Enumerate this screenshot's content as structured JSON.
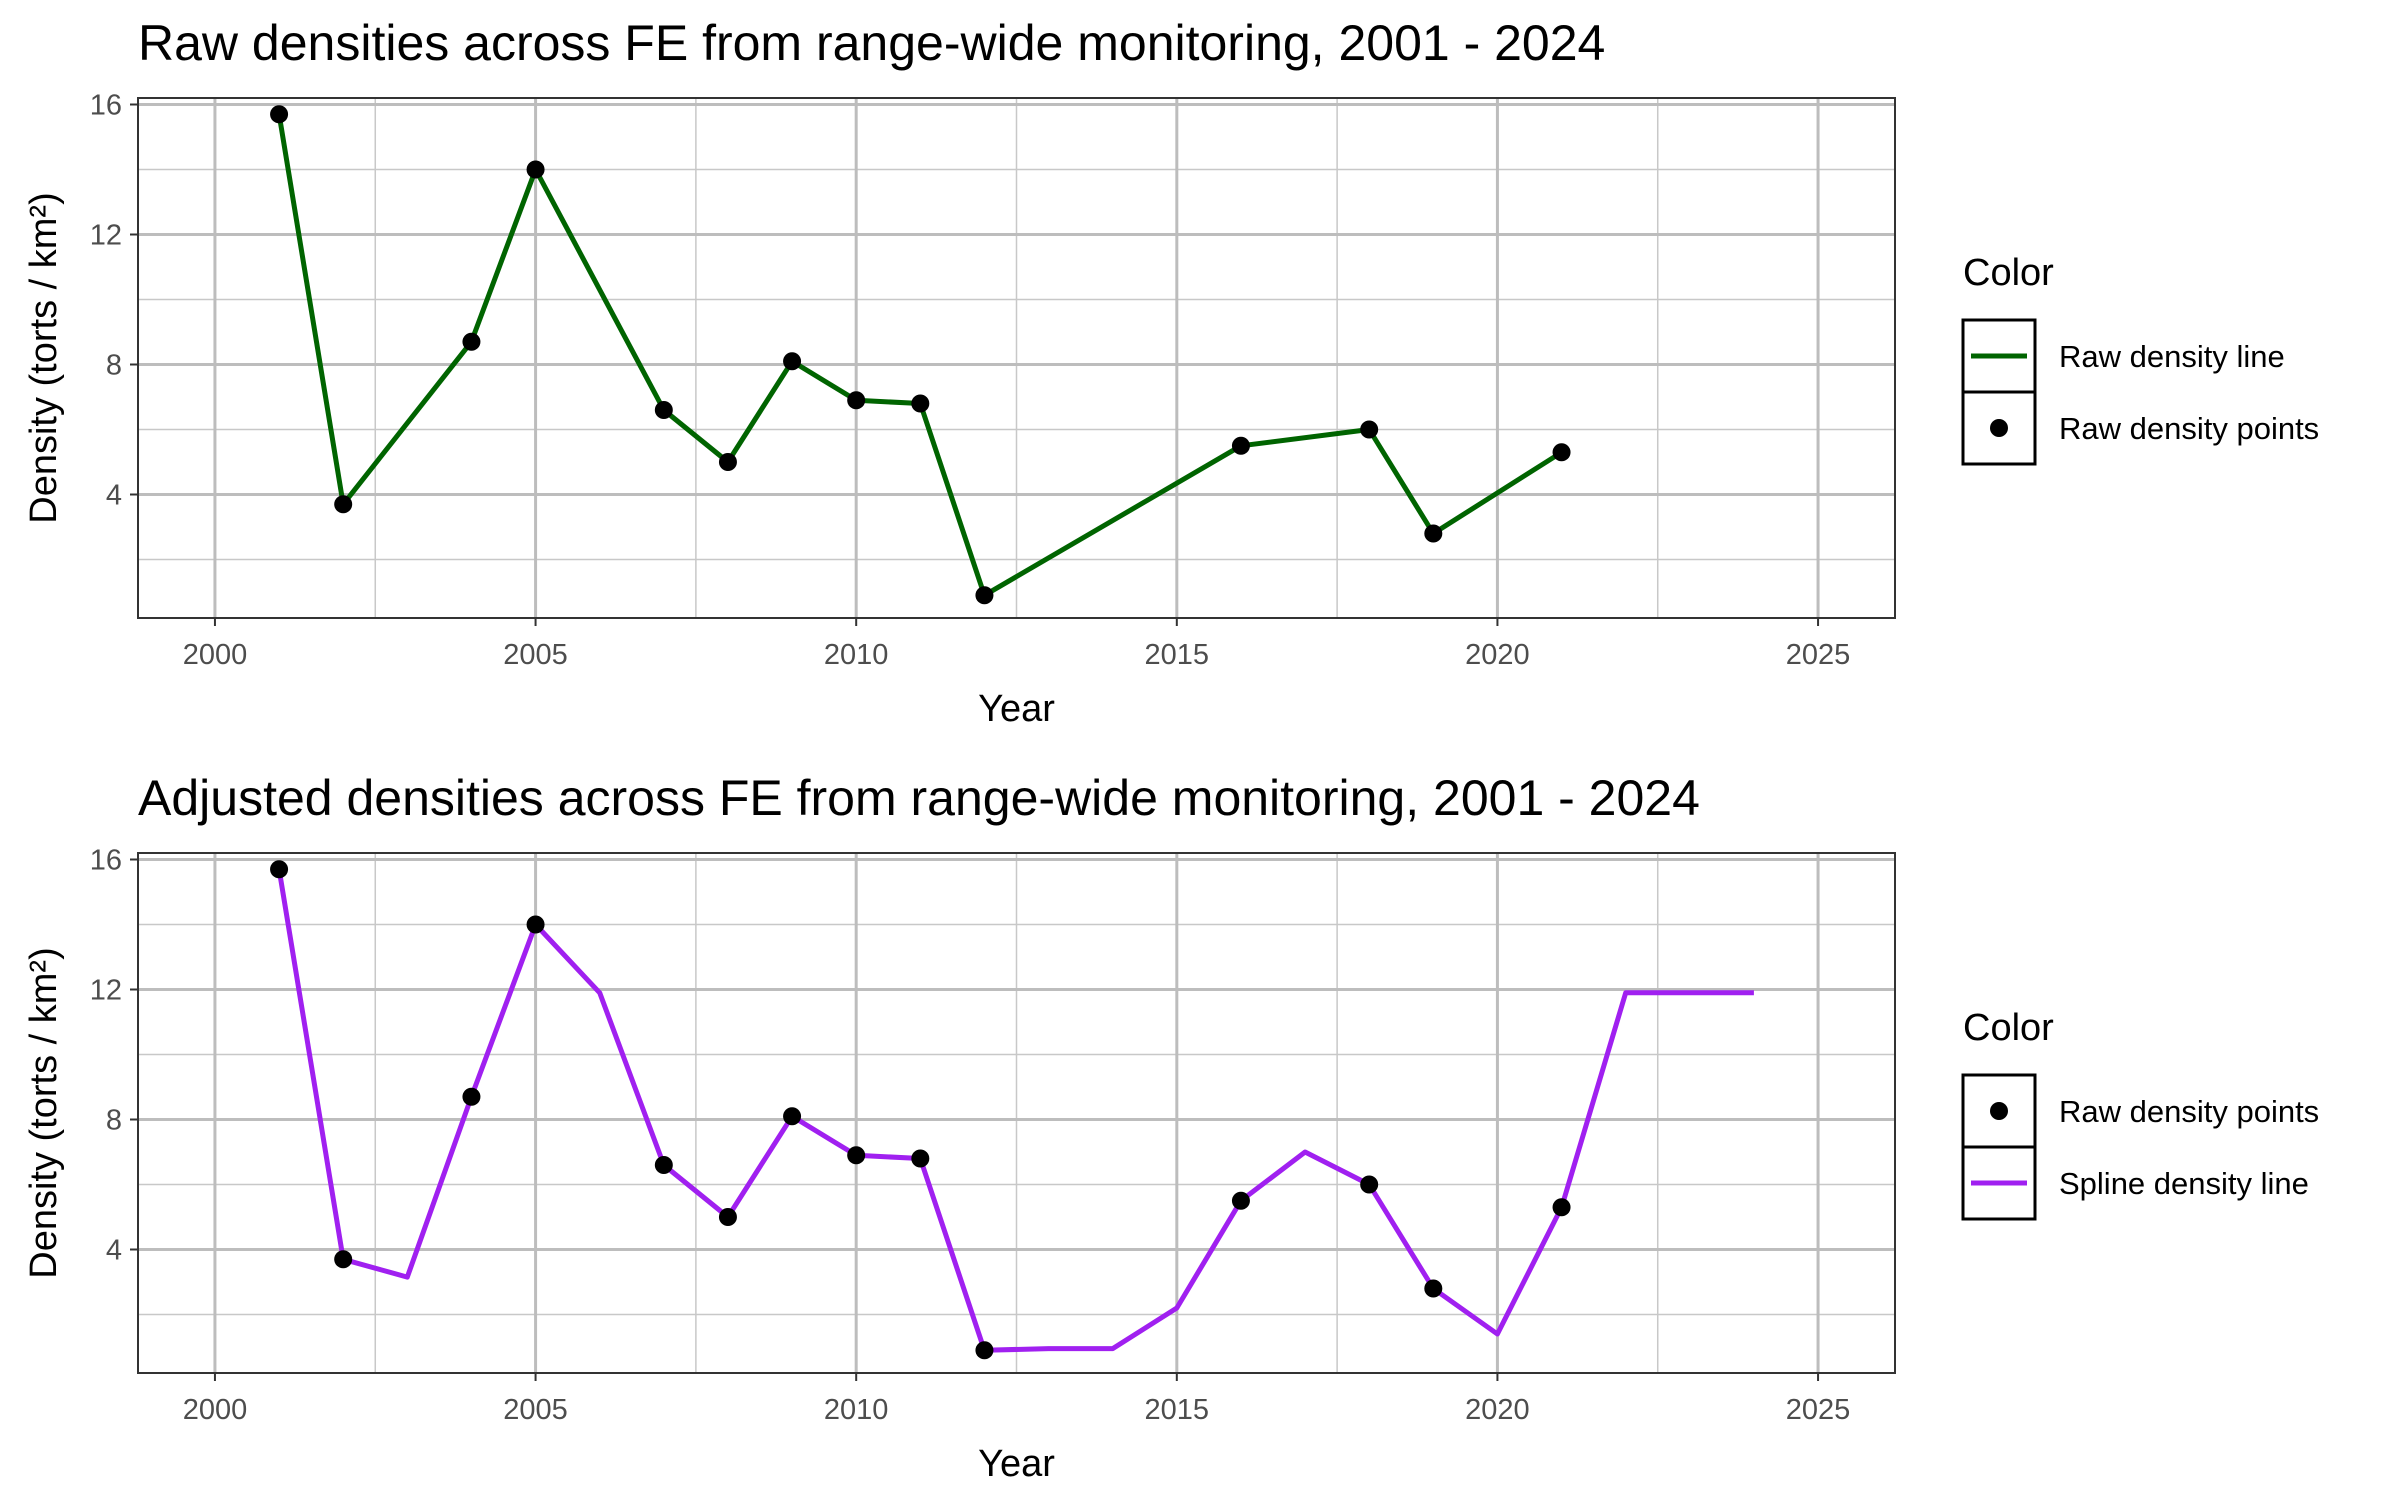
{
  "chart_data": [
    {
      "type": "line",
      "title": "Raw densities across FE from range-wide monitoring, 2001 - 2024",
      "xlabel": "Year",
      "ylabel": "Density (torts / km²)",
      "xlim": [
        1998.8,
        2026.2
      ],
      "ylim": [
        0.2,
        16.2
      ],
      "x_ticks": [
        2000,
        2005,
        2010,
        2015,
        2020,
        2025
      ],
      "y_ticks": [
        4,
        8,
        12,
        16
      ],
      "grid": true,
      "legend": {
        "title": "Color",
        "placement": "right",
        "entries": [
          {
            "label": "Raw density line",
            "kind": "line",
            "color": "#006400"
          },
          {
            "label": "Raw density points",
            "kind": "point",
            "color": "#000000"
          }
        ]
      },
      "series": [
        {
          "name": "Raw density line",
          "kind": "line",
          "color": "#006400",
          "x": [
            2001,
            2002,
            2004,
            2005,
            2007,
            2008,
            2009,
            2010,
            2011,
            2012,
            2016,
            2018,
            2019,
            2021
          ],
          "values": [
            15.7,
            3.7,
            8.7,
            14.0,
            6.6,
            5.0,
            8.1,
            6.9,
            6.8,
            0.9,
            5.5,
            6.0,
            2.8,
            5.3
          ]
        },
        {
          "name": "Raw density points",
          "kind": "point",
          "color": "#000000",
          "x": [
            2001,
            2002,
            2004,
            2005,
            2007,
            2008,
            2009,
            2010,
            2011,
            2012,
            2016,
            2018,
            2019,
            2021
          ],
          "values": [
            15.7,
            3.7,
            8.7,
            14.0,
            6.6,
            5.0,
            8.1,
            6.9,
            6.8,
            0.9,
            5.5,
            6.0,
            2.8,
            5.3
          ]
        }
      ]
    },
    {
      "type": "line",
      "title": "Adjusted densities across FE from range-wide monitoring, 2001 - 2024",
      "xlabel": "Year",
      "ylabel": "Density (torts / km²)",
      "xlim": [
        1998.8,
        2026.2
      ],
      "ylim": [
        0.2,
        16.2
      ],
      "x_ticks": [
        2000,
        2005,
        2010,
        2015,
        2020,
        2025
      ],
      "y_ticks": [
        4,
        8,
        12,
        16
      ],
      "grid": true,
      "legend": {
        "title": "Color",
        "placement": "right",
        "entries": [
          {
            "label": "Raw density points",
            "kind": "point",
            "color": "#000000"
          },
          {
            "label": "Spline density line",
            "kind": "line",
            "color": "#A020F0"
          }
        ]
      },
      "series": [
        {
          "name": "Spline density line",
          "kind": "line",
          "color": "#A020F0",
          "x": [
            2001,
            2002,
            2003,
            2004,
            2005,
            2006,
            2007,
            2008,
            2009,
            2010,
            2011,
            2012,
            2013,
            2014,
            2015,
            2016,
            2017,
            2018,
            2019,
            2020,
            2021,
            2022,
            2023,
            2024
          ],
          "values": [
            15.7,
            3.7,
            3.15,
            8.7,
            14.0,
            11.9,
            6.6,
            5.0,
            8.1,
            6.9,
            6.8,
            0.9,
            0.95,
            0.95,
            2.2,
            5.5,
            7.0,
            6.0,
            2.8,
            1.4,
            5.3,
            11.9,
            11.9,
            11.9
          ]
        },
        {
          "name": "Raw density points",
          "kind": "point",
          "color": "#000000",
          "x": [
            2001,
            2002,
            2004,
            2005,
            2007,
            2008,
            2009,
            2010,
            2011,
            2012,
            2016,
            2018,
            2019,
            2021
          ],
          "values": [
            15.7,
            3.7,
            8.7,
            14.0,
            6.6,
            5.0,
            8.1,
            6.9,
            6.8,
            0.9,
            5.5,
            6.0,
            2.8,
            5.3
          ]
        }
      ]
    }
  ]
}
